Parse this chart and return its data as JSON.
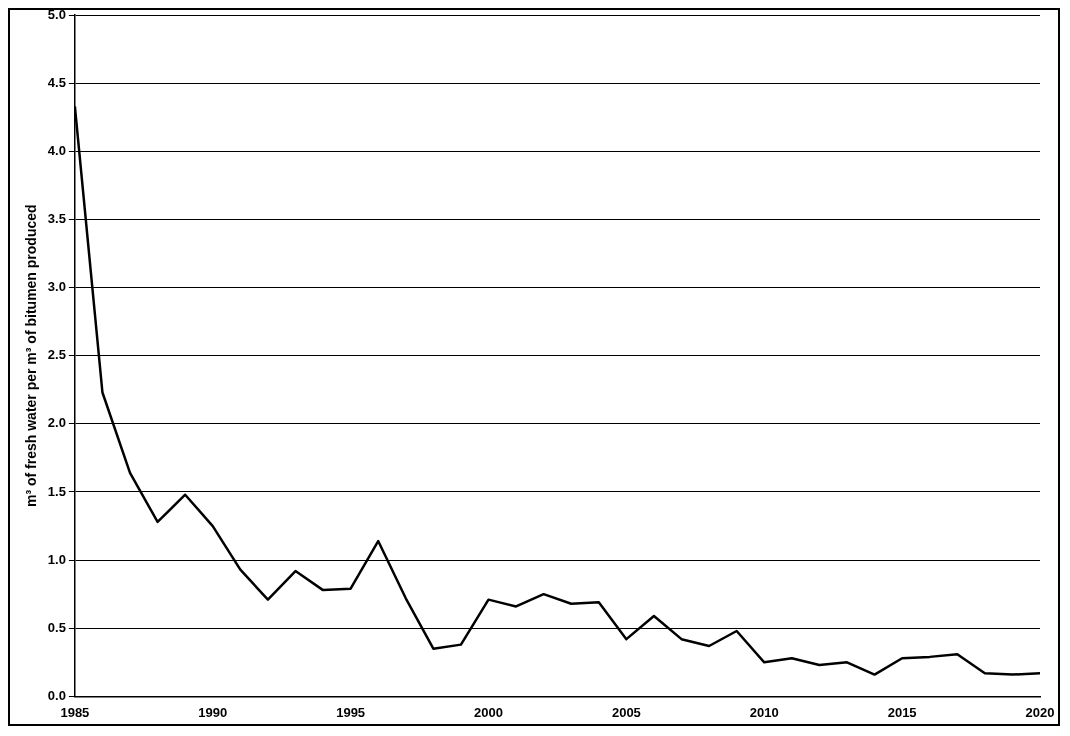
{
  "chart_data": {
    "type": "line",
    "ylabel": "m³ of fresh water per m³ of bitumen produced",
    "x": [
      1985,
      1986,
      1987,
      1988,
      1989,
      1990,
      1991,
      1992,
      1993,
      1994,
      1995,
      1996,
      1997,
      1998,
      1999,
      2000,
      2001,
      2002,
      2003,
      2004,
      2005,
      2006,
      2007,
      2008,
      2009,
      2010,
      2011,
      2012,
      2013,
      2014,
      2015,
      2016,
      2017,
      2018,
      2019,
      2020
    ],
    "series": [
      {
        "color": "#000000",
        "values": [
          4.33,
          2.23,
          1.64,
          1.28,
          1.48,
          1.25,
          0.93,
          0.71,
          0.92,
          0.78,
          0.79,
          1.14,
          0.72,
          0.35,
          0.38,
          0.71,
          0.66,
          0.75,
          0.68,
          0.69,
          0.42,
          0.59,
          0.42,
          0.37,
          0.48,
          0.25,
          0.28,
          0.23,
          0.25,
          0.16,
          0.28,
          0.29,
          0.31,
          0.17,
          0.16,
          0.17
        ]
      }
    ],
    "xlim": [
      1985,
      2020
    ],
    "xticks": [
      1985,
      1990,
      1995,
      2000,
      2005,
      2010,
      2015,
      2020
    ],
    "ylim": [
      0,
      5
    ],
    "yticks": [
      {
        "value": 0,
        "label": "0.0"
      },
      {
        "value": 0.5,
        "label": "0.5"
      },
      {
        "value": 1,
        "label": "1.0"
      },
      {
        "value": 1.5,
        "label": "1.5"
      },
      {
        "value": 2,
        "label": "2.0"
      },
      {
        "value": 2.5,
        "label": "2.5"
      },
      {
        "value": 3,
        "label": "3.0"
      },
      {
        "value": 3.5,
        "label": "3.5"
      },
      {
        "value": 4,
        "label": "4.0"
      },
      {
        "value": 4.5,
        "label": "4.5"
      },
      {
        "value": 5,
        "label": "5.0"
      }
    ],
    "grid": "y",
    "legend": false,
    "marker": "none",
    "line_style": "solid"
  }
}
